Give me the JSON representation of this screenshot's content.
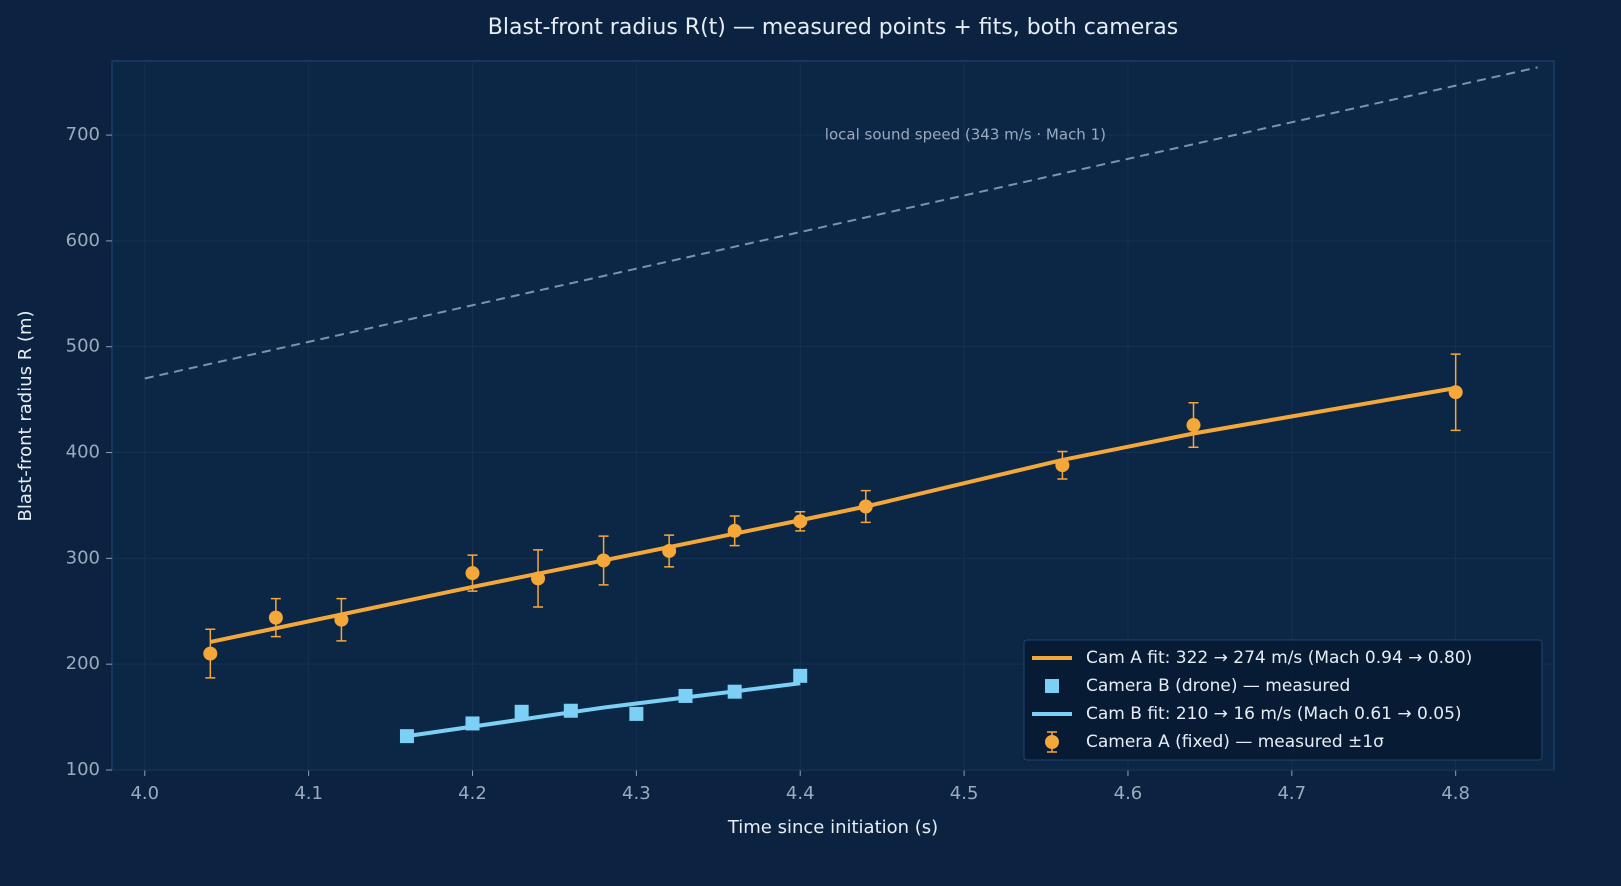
{
  "chart_data": {
    "type": "scatter",
    "title": "Blast-front radius R(t) — measured points + fits, both cameras",
    "x_label": "Time since initiation  (s)",
    "y_label": "Blast-front radius  R  (m)",
    "xlim": [
      3.98,
      4.86
    ],
    "ylim": [
      100,
      770
    ],
    "xticks": [
      {
        "value": 4,
        "label": "4.0"
      },
      4.1,
      4.2,
      4.3,
      4.4,
      4.5,
      4.6,
      4.7,
      4.8
    ],
    "yticks": [
      100,
      200,
      300,
      400,
      500,
      600,
      700
    ],
    "grid": true,
    "legend": "lower right",
    "reference": {
      "x": [
        4.0,
        4.85
      ],
      "values": [
        470,
        764
      ],
      "color": "#7d93ad",
      "annotation": "local sound speed (343 m/s · Mach 1)",
      "annotation_x": 4.415,
      "annotation_y": 700
    },
    "series": [
      {
        "name": "Cam A fit: 322 → 274 m/s (Mach 0.94 → 0.80)",
        "type": "line",
        "color": "#f5a83a",
        "x": [
          4.04,
          4.2,
          4.28,
          4.4,
          4.44,
          4.56,
          4.64,
          4.8
        ],
        "values": [
          221,
          273,
          298,
          336,
          349,
          393,
          418,
          461
        ]
      },
      {
        "name": "Camera B (drone) — measured",
        "type": "scatter",
        "marker": "square",
        "color": "#7ccff5",
        "x": [
          4.16,
          4.2,
          4.23,
          4.26,
          4.3,
          4.33,
          4.36,
          4.4
        ],
        "values": [
          132,
          144,
          155,
          156,
          153,
          170,
          174,
          189
        ]
      },
      {
        "name": "Cam B fit: 210 → 16 m/s (Mach 0.61 → 0.05)",
        "type": "line",
        "color": "#7ccff5",
        "x": [
          4.16,
          4.28,
          4.4
        ],
        "values": [
          132,
          159,
          182
        ]
      },
      {
        "name": "Camera A (fixed) — measured ±1σ",
        "type": "errorbar",
        "marker": "circle",
        "color": "#f5a83a",
        "x": [
          4.04,
          4.08,
          4.12,
          4.2,
          4.24,
          4.28,
          4.32,
          4.36,
          4.4,
          4.44,
          4.56,
          4.64,
          4.8
        ],
        "values": [
          210,
          244,
          242,
          286,
          281,
          298,
          307,
          326,
          335,
          349,
          388,
          426,
          457
        ],
        "errors": [
          23,
          18,
          20,
          17,
          27,
          23,
          15,
          14,
          9,
          15,
          13,
          21,
          36
        ]
      }
    ]
  }
}
